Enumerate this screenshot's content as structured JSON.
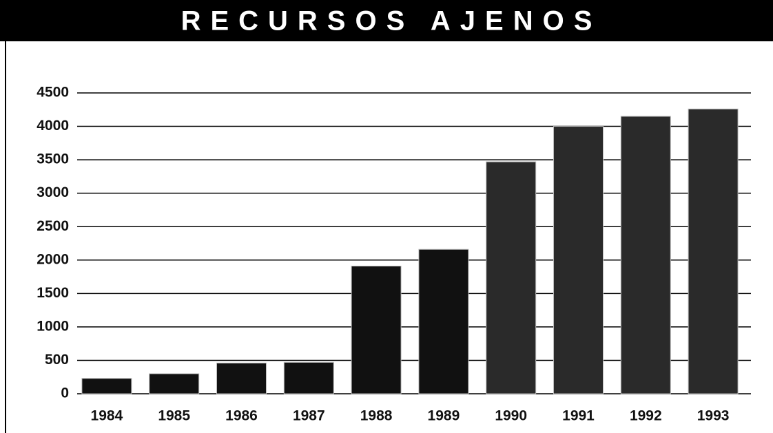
{
  "chart_data": {
    "type": "bar",
    "title": "RECURSOS AJENOS",
    "categories": [
      "1984",
      "1985",
      "1986",
      "1987",
      "1988",
      "1989",
      "1990",
      "1991",
      "1992",
      "1993"
    ],
    "values": [
      230,
      300,
      460,
      470,
      1910,
      2160,
      3470,
      4000,
      4150,
      4260
    ],
    "colors": [
      "#111111",
      "#111111",
      "#111111",
      "#111111",
      "#111111",
      "#111111",
      "#2a2a2a",
      "#2a2a2a",
      "#2a2a2a",
      "#2a2a2a"
    ],
    "ylim": [
      0,
      4500
    ],
    "yticks": [
      0,
      500,
      1000,
      1500,
      2000,
      2500,
      3000,
      3500,
      4000,
      4500
    ],
    "grid": true
  }
}
